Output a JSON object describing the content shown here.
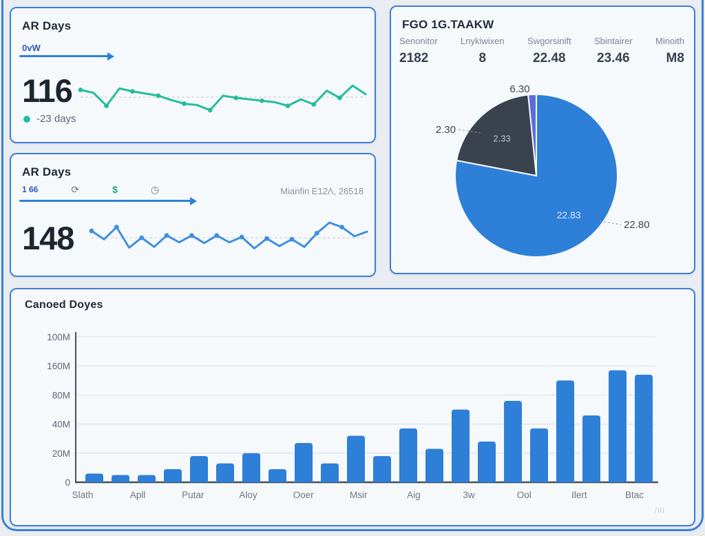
{
  "colors": {
    "accent_blue": "#2e7fd8",
    "teal": "#25bd9d",
    "dark_slate": "#3a424e",
    "purple": "#5c6ce0",
    "card_border": "#3d7fd6"
  },
  "cards": {
    "ar_top": {
      "title": "AR Days",
      "sub_label": "0vW",
      "value": "116",
      "delta_label": "-23 days"
    },
    "ar_mid": {
      "title": "AR Days",
      "metric_label": "1 66",
      "meta": "Mianfin E12Λ, 26518",
      "value": "148"
    },
    "summary": {
      "title": "FGO 1G.TAAKW",
      "stats": [
        {
          "label": "Senonitor",
          "value": "2182"
        },
        {
          "label": "Lnykiwixen",
          "value": "8"
        },
        {
          "label": "Swgorsinift",
          "value": "22.48"
        },
        {
          "label": "Sbintairer",
          "value": "23.46"
        },
        {
          "label": "Minoith",
          "value": "M8"
        }
      ]
    },
    "bar_card": {
      "title": "Canoed Doyes",
      "corner_ghost": "/ili"
    }
  },
  "chart_data": [
    {
      "type": "line",
      "name": "ar-days-trend-top",
      "color": "#25bd9d",
      "ref_value": 20,
      "values": [
        30,
        26,
        8,
        32,
        28,
        25,
        22,
        16,
        11,
        9,
        2,
        22,
        19,
        17,
        15,
        13,
        8,
        17,
        10,
        29,
        19,
        36,
        24
      ]
    },
    {
      "type": "line",
      "name": "ar-days-trend-mid",
      "color": "#3f8fdf",
      "ref_value": 19,
      "values": [
        28,
        17,
        33,
        6,
        19,
        7,
        22,
        13,
        22,
        12,
        22,
        13,
        20,
        5,
        18,
        8,
        17,
        7,
        25,
        39,
        33,
        21,
        27
      ]
    },
    {
      "type": "pie",
      "name": "summary-pie",
      "legend_position": "none",
      "slices": [
        {
          "value": 78.0,
          "color": "#2e7fd8",
          "inner_label": "22.83",
          "callout": "22.80"
        },
        {
          "value": 20.4,
          "color": "#3a424e",
          "inner_label": "2.33",
          "callout": "2.30"
        },
        {
          "value": 1.6,
          "color": "#5c6ce0",
          "inner_label": "",
          "callout": "6.30"
        }
      ]
    },
    {
      "type": "bar",
      "name": "canoed-doyes-bars",
      "title": "Canoed Doyes",
      "bar_color": "#2e7fd8",
      "grid": true,
      "ylim": [
        0,
        100
      ],
      "y_ticks": [
        "100M",
        "160M",
        "80M",
        "40M",
        "20M",
        "0"
      ],
      "categories": [
        "Slath",
        "Apll",
        "Putar",
        "Aloy",
        "Ooer",
        "Msir",
        "Aig",
        "3w",
        "Ool",
        "Ilert",
        "Btac"
      ],
      "values": [
        6,
        5,
        5,
        9,
        18,
        13,
        20,
        9,
        27,
        13,
        32,
        18,
        37,
        23,
        50,
        28,
        56,
        37,
        70,
        46,
        77,
        74
      ]
    }
  ]
}
